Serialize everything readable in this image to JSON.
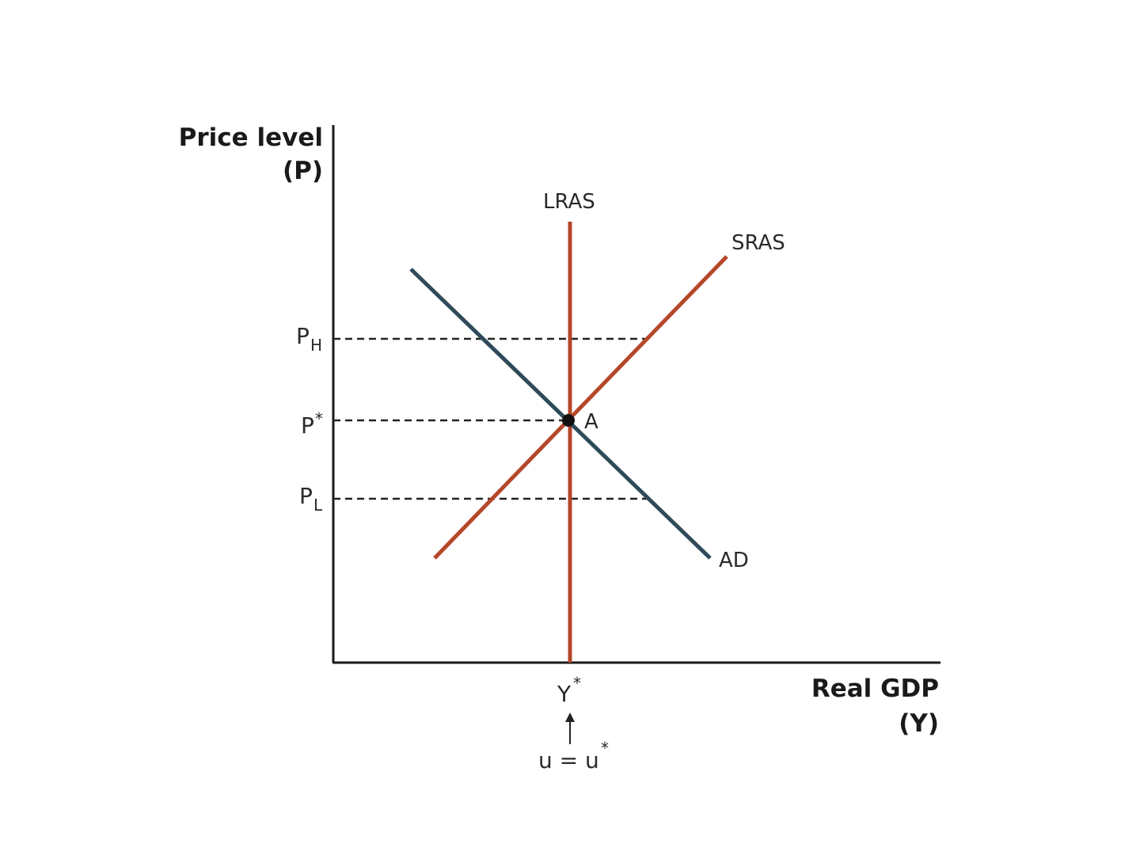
{
  "axes": {
    "y_title_line1": "Price level",
    "y_title_line2": "(P)",
    "x_title_line1": "Real GDP",
    "x_title_line2": "(Y)"
  },
  "curves": {
    "lras": {
      "label": "LRAS",
      "color": "#b5472a"
    },
    "sras": {
      "label": "SRAS",
      "color": "#b5472a"
    },
    "ad": {
      "label": "AD",
      "color": "#2f4b5a"
    }
  },
  "price_ticks": {
    "high": {
      "base": "P",
      "sub": "H"
    },
    "star": {
      "base": "P",
      "sup": "*"
    },
    "low": {
      "base": "P",
      "sub": "L"
    }
  },
  "output_tick": {
    "base": "Y",
    "sup": "*"
  },
  "equilibrium": {
    "label": "A"
  },
  "unemployment_note": {
    "text": "u = u",
    "sup": "*",
    "arrow": "up-arrow"
  }
}
